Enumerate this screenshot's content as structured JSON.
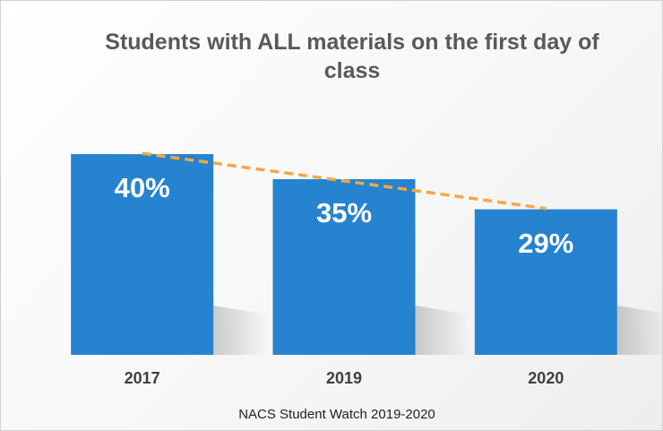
{
  "chart_data": {
    "type": "bar",
    "title": "Students with ALL materials on the first day of class",
    "categories": [
      "2017",
      "2019",
      "2020"
    ],
    "values": [
      40,
      35,
      29
    ],
    "value_labels": [
      "40%",
      "35%",
      "29%"
    ],
    "color": "#2683cf",
    "trendline": true,
    "trendline_color": "#f5a742",
    "source": "NACS Student Watch 2019-2020"
  }
}
